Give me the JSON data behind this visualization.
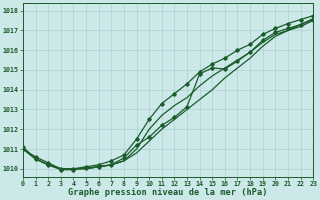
{
  "title": "Graphe pression niveau de la mer (hPa)",
  "bg_color": "#cce8e8",
  "grid_color": "#aad0d0",
  "line_color": "#1a5c2a",
  "xlim": [
    0,
    23
  ],
  "ylim": [
    1009.6,
    1018.4
  ],
  "yticks": [
    1010,
    1011,
    1012,
    1013,
    1014,
    1015,
    1016,
    1017,
    1018
  ],
  "xticks": [
    0,
    1,
    2,
    3,
    4,
    5,
    6,
    7,
    8,
    9,
    10,
    11,
    12,
    13,
    14,
    15,
    16,
    17,
    18,
    19,
    20,
    21,
    22,
    23
  ],
  "series_plain": [
    [
      1011.0,
      1010.5,
      1010.2,
      1010.0,
      1010.0,
      1010.0,
      1010.1,
      1010.2,
      1010.4,
      1010.8,
      1011.4,
      1012.0,
      1012.5,
      1013.0,
      1013.5,
      1014.0,
      1014.6,
      1015.1,
      1015.6,
      1016.2,
      1016.7,
      1017.0,
      1017.2,
      1017.5
    ],
    [
      1011.0,
      1010.5,
      1010.2,
      1010.0,
      1010.0,
      1010.0,
      1010.1,
      1010.2,
      1010.4,
      1011.0,
      1012.0,
      1012.7,
      1013.2,
      1013.6,
      1014.2,
      1014.7,
      1015.1,
      1015.5,
      1015.9,
      1016.4,
      1016.8,
      1017.0,
      1017.3,
      1017.6
    ]
  ],
  "series_marker_top": [
    [
      1011.0,
      1010.6,
      1010.3,
      1010.0,
      1010.0,
      1010.1,
      1010.2,
      1010.4,
      1010.7,
      1011.5,
      1012.5,
      1013.3,
      1013.8,
      1014.3,
      1014.9,
      1015.3,
      1015.6,
      1016.0,
      1016.3,
      1016.8,
      1017.1,
      1017.35,
      1017.55,
      1017.75
    ]
  ],
  "series_marker_low": [
    [
      1011.1,
      1010.5,
      1010.2,
      1009.95,
      1009.95,
      1010.05,
      1010.1,
      1010.2,
      1010.55,
      1011.2,
      1011.6,
      1012.2,
      1012.6,
      1013.15,
      1014.8,
      1015.1,
      1015.05,
      1015.45,
      1015.9,
      1016.5,
      1016.9,
      1017.1,
      1017.3,
      1017.55
    ]
  ]
}
